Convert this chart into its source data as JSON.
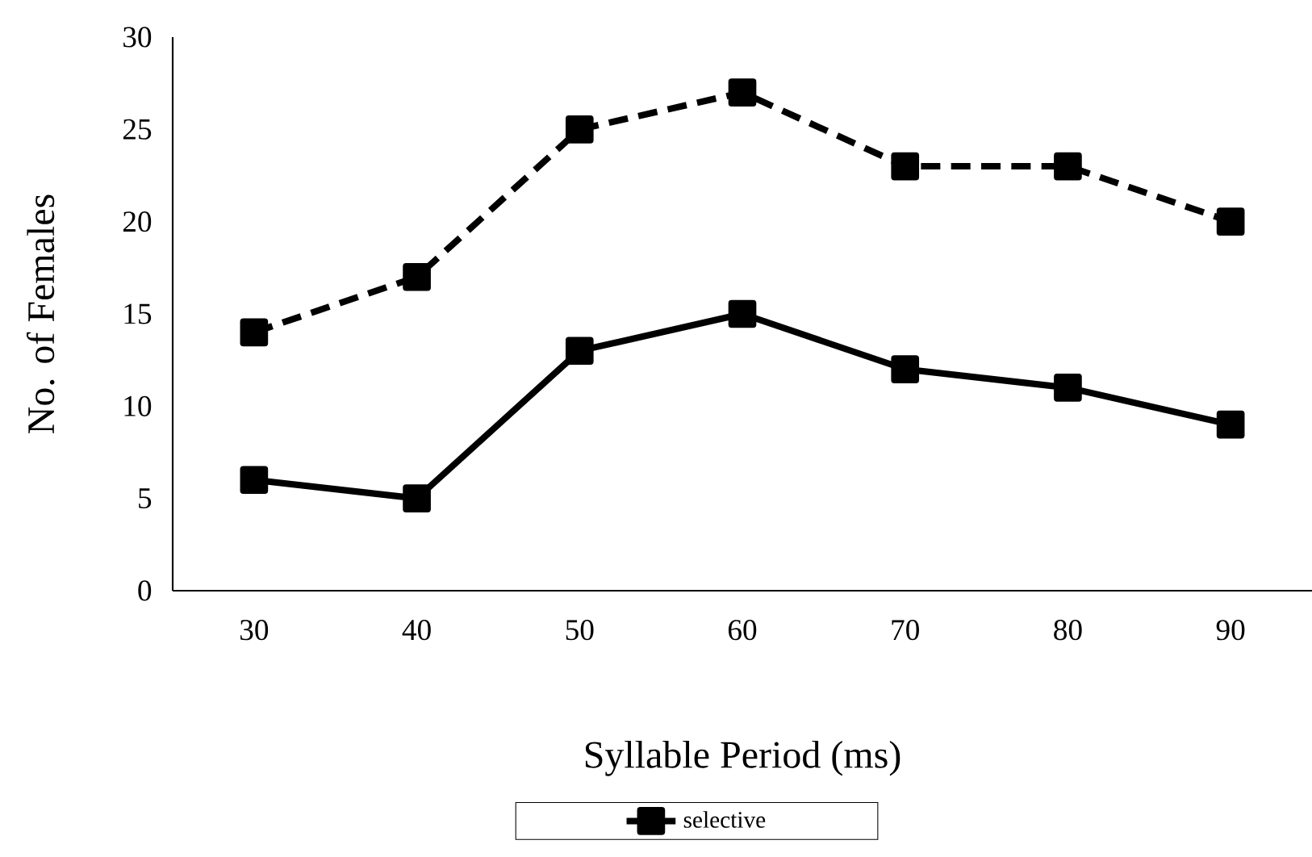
{
  "chart_data": {
    "type": "line",
    "xlabel": "Syllable Period (ms)",
    "ylabel": "No. of Females",
    "categories": [
      "30",
      "40",
      "50",
      "60",
      "70",
      "80",
      "90"
    ],
    "series": [
      {
        "color": "#000000",
        "line_style": "dashed",
        "values": [
          14,
          17,
          25,
          27,
          23,
          23,
          20
        ]
      },
      {
        "name": "selective",
        "color": "#000000",
        "line_style": "solid",
        "values": [
          6,
          5,
          13,
          15,
          12,
          11,
          9
        ]
      }
    ],
    "ylim": [
      0,
      30
    ],
    "yticks": [
      0,
      5,
      10,
      15,
      20,
      25,
      30
    ],
    "marker": "square",
    "legend": "bottom"
  }
}
